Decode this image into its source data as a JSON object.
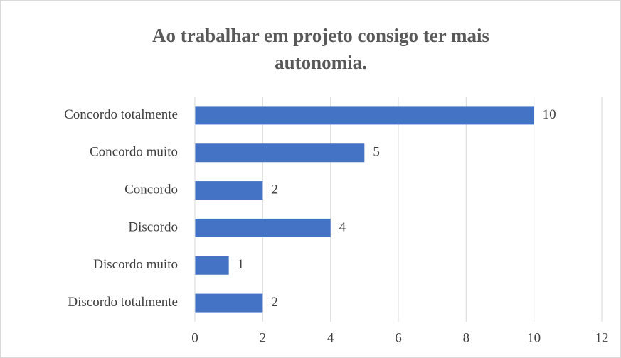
{
  "chart_data": {
    "type": "bar",
    "orientation": "horizontal",
    "title": "Ao trabalhar em projeto consigo ter mais autonomia.",
    "categories": [
      "Concordo totalmente",
      "Concordo muito",
      "Concordo",
      "Discordo",
      "Discordo muito",
      "Discordo totalmente"
    ],
    "values": [
      10,
      5,
      2,
      4,
      1,
      2
    ],
    "color": "#4472c4",
    "xlim": [
      0,
      12
    ],
    "xticks": [
      0,
      2,
      4,
      6,
      8,
      10,
      12
    ],
    "grid": true
  }
}
